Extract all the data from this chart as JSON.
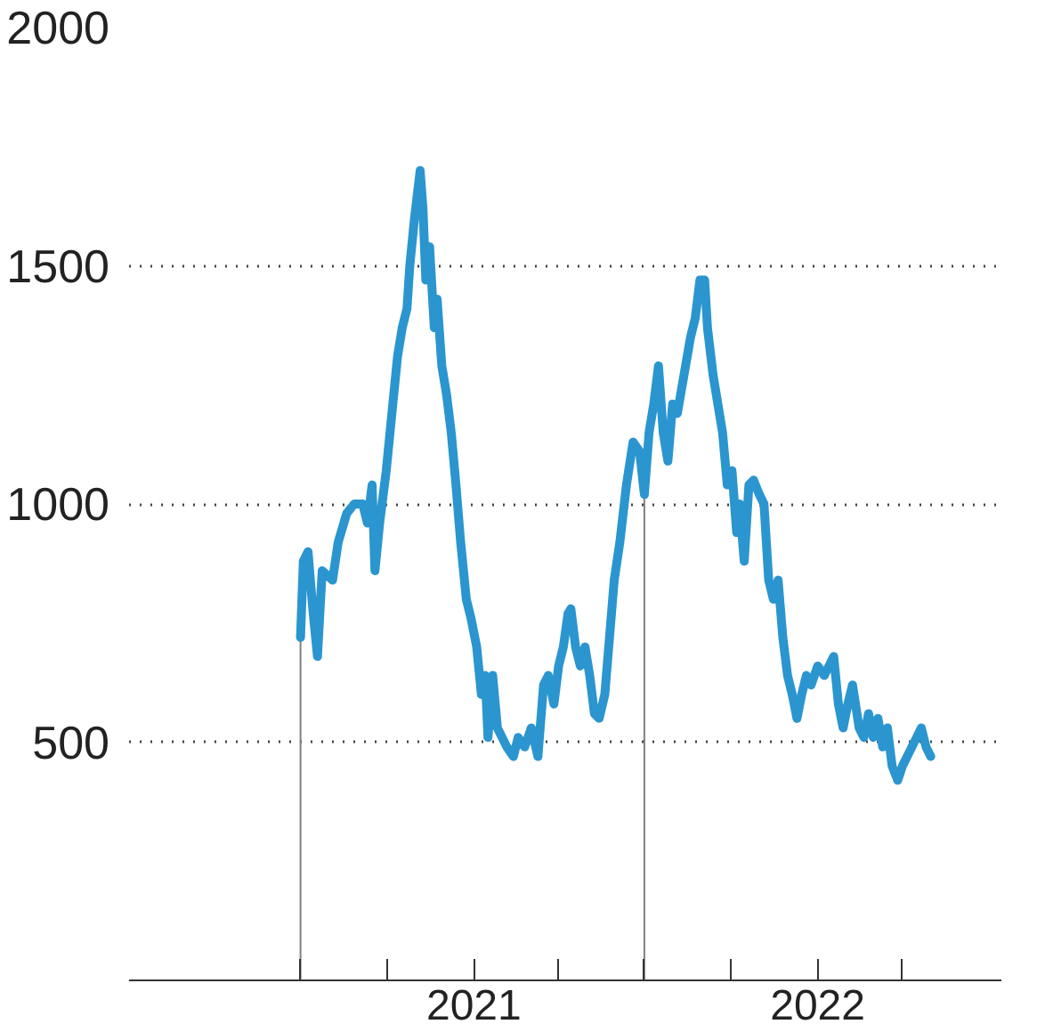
{
  "chart_data": {
    "type": "line",
    "series": [
      {
        "color": "#2b95cf",
        "x": [
          "2020-07-01",
          "2020-07-04",
          "2020-07-09",
          "2020-07-14",
          "2020-07-19",
          "2020-07-24",
          "2020-08-04",
          "2020-08-10",
          "2020-08-19",
          "2020-08-27",
          "2020-09-05",
          "2020-09-10",
          "2020-09-15",
          "2020-09-18",
          "2020-09-23",
          "2020-09-30",
          "2020-10-05",
          "2020-10-12",
          "2020-10-17",
          "2020-10-22",
          "2020-10-25",
          "2020-10-30",
          "2020-11-05",
          "2020-11-08",
          "2020-11-11",
          "2020-11-15",
          "2020-11-20",
          "2020-11-23",
          "2020-11-28",
          "2020-12-03",
          "2020-12-08",
          "2020-12-13",
          "2020-12-18",
          "2020-12-24",
          "2020-12-29",
          "2021-01-04",
          "2021-01-09",
          "2021-01-13",
          "2021-01-16",
          "2021-01-21",
          "2021-01-26",
          "2021-02-05",
          "2021-02-12",
          "2021-02-17",
          "2021-02-24",
          "2021-03-03",
          "2021-03-10",
          "2021-03-16",
          "2021-03-21",
          "2021-03-27",
          "2021-04-01",
          "2021-04-06",
          "2021-04-11",
          "2021-04-14",
          "2021-04-19",
          "2021-04-24",
          "2021-04-29",
          "2021-05-04",
          "2021-05-09",
          "2021-05-14",
          "2021-05-20",
          "2021-05-25",
          "2021-05-30",
          "2021-06-05",
          "2021-06-12",
          "2021-06-19",
          "2021-06-26",
          "2021-07-01",
          "2021-07-06",
          "2021-07-11",
          "2021-07-16",
          "2021-07-21",
          "2021-07-26",
          "2021-07-31",
          "2021-08-05",
          "2021-08-12",
          "2021-08-19",
          "2021-08-24",
          "2021-08-29",
          "2021-09-03",
          "2021-09-06",
          "2021-09-12",
          "2021-09-17",
          "2021-09-22",
          "2021-09-27",
          "2021-10-02",
          "2021-10-07",
          "2021-10-10",
          "2021-10-15",
          "2021-10-20",
          "2021-10-25",
          "2021-10-31",
          "2021-11-05",
          "2021-11-10",
          "2021-11-15",
          "2021-11-20",
          "2021-11-25",
          "2021-11-30",
          "2021-12-05",
          "2021-12-10",
          "2021-12-15",
          "2021-12-20",
          "2021-12-25",
          "2022-01-01",
          "2022-01-08",
          "2022-01-18",
          "2022-01-23",
          "2022-01-28",
          "2022-02-02",
          "2022-02-07",
          "2022-02-14",
          "2022-02-19",
          "2022-02-24",
          "2022-03-01",
          "2022-03-06",
          "2022-03-11",
          "2022-03-16",
          "2022-03-21",
          "2022-03-27",
          "2022-04-01",
          "2022-04-06",
          "2022-04-11",
          "2022-04-16",
          "2022-04-21",
          "2022-04-26",
          "2022-05-01"
        ],
        "values": [
          720,
          880,
          900,
          780,
          680,
          860,
          840,
          920,
          980,
          1000,
          1000,
          960,
          1040,
          860,
          960,
          1070,
          1170,
          1310,
          1370,
          1410,
          1500,
          1600,
          1700,
          1620,
          1470,
          1540,
          1370,
          1430,
          1290,
          1230,
          1150,
          1040,
          920,
          800,
          760,
          700,
          600,
          640,
          510,
          640,
          530,
          490,
          470,
          510,
          490,
          530,
          470,
          620,
          640,
          580,
          660,
          700,
          770,
          780,
          700,
          660,
          700,
          640,
          560,
          550,
          600,
          720,
          840,
          920,
          1040,
          1130,
          1110,
          1020,
          1150,
          1210,
          1290,
          1150,
          1090,
          1210,
          1190,
          1270,
          1350,
          1390,
          1470,
          1470,
          1370,
          1270,
          1210,
          1150,
          1040,
          1070,
          940,
          1000,
          880,
          1040,
          1050,
          1020,
          1000,
          840,
          800,
          840,
          720,
          640,
          600,
          550,
          600,
          640,
          620,
          660,
          640,
          680,
          580,
          530,
          580,
          620,
          530,
          510,
          560,
          510,
          550,
          490,
          530,
          450,
          420,
          450,
          470,
          490,
          510,
          530,
          490,
          470
        ]
      }
    ],
    "xlim": [
      "2020-01-01",
      "2022-07-15"
    ],
    "xticks": [
      {
        "value": "2020-07-01",
        "label": null
      },
      {
        "value": "2020-10-01",
        "label": null
      },
      {
        "value": "2021-01-01",
        "label": "2021"
      },
      {
        "value": "2021-04-01",
        "label": null
      },
      {
        "value": "2021-07-01",
        "label": null
      },
      {
        "value": "2021-10-01",
        "label": null
      },
      {
        "value": "2022-01-01",
        "label": "2022"
      },
      {
        "value": "2022-04-01",
        "label": null
      }
    ],
    "ylim": [
      0,
      2000
    ],
    "yticks": [
      500,
      1000,
      1500,
      2000
    ],
    "grid": "y",
    "line_style": "solid",
    "ref_lines": [
      {
        "axis": "x",
        "value": "2020-07-01",
        "color": "#808080"
      },
      {
        "axis": "x",
        "value": "2021-07-01",
        "color": "#808080"
      }
    ]
  }
}
